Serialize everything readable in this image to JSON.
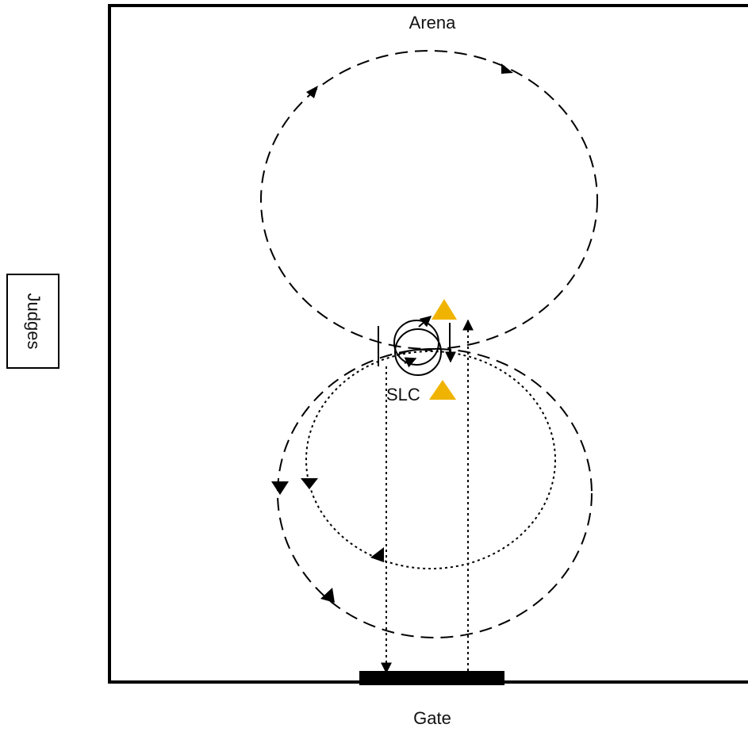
{
  "labels": {
    "arena": "Arena",
    "gate": "Gate",
    "judges": "Judges",
    "slc": "SLC"
  },
  "colors": {
    "line": "#000000",
    "cone": "#f0b400",
    "background": "#ffffff"
  },
  "icons": {
    "cone": "triangle-cone-icon",
    "direction": "arrowhead-icon"
  }
}
